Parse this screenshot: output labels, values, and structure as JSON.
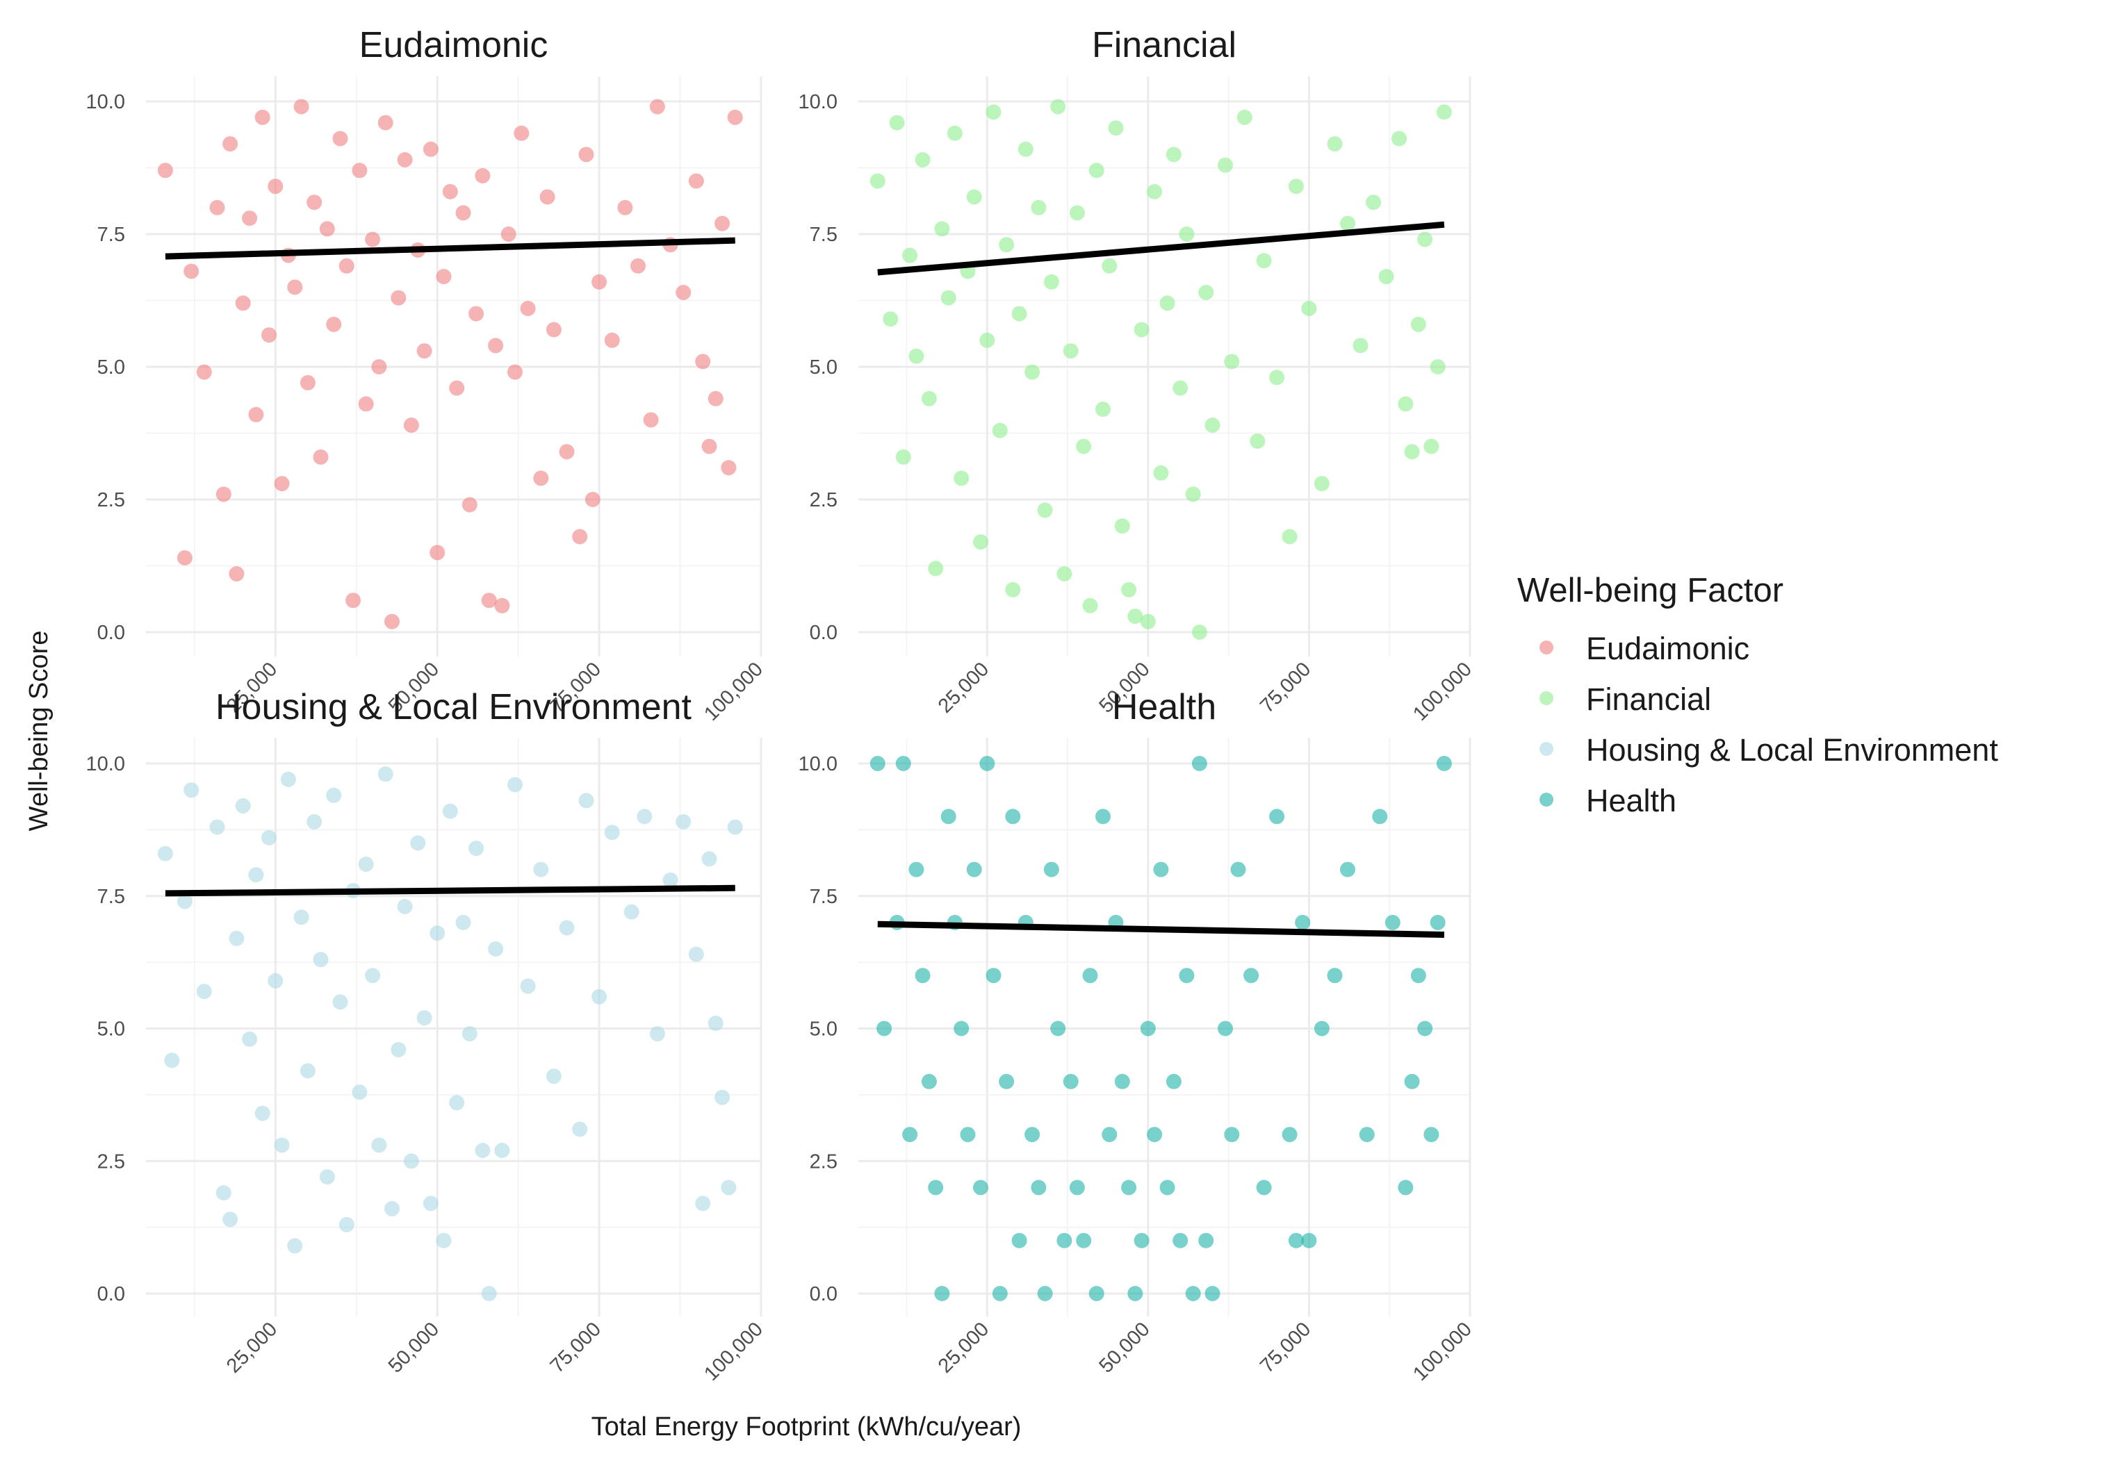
{
  "chart_data": {
    "type": "scatter",
    "xlabel": "Total Energy Footprint (kWh/cu/year)",
    "ylabel": "Well-being Score",
    "xlim": [
      5000,
      100000
    ],
    "ylim": [
      0,
      10
    ],
    "x_ticks": [
      25000,
      50000,
      75000,
      100000
    ],
    "x_tick_labels": [
      "25,000",
      "50,000",
      "75,000",
      "100,000"
    ],
    "y_ticks": [
      0,
      2.5,
      5,
      7.5,
      10
    ],
    "y_tick_labels": [
      "0.0",
      "2.5",
      "5.0",
      "7.5",
      "10.0"
    ],
    "grid": true,
    "legend": {
      "title": "Well-being Factor",
      "placement": "right",
      "entries": [
        "Eudaimonic",
        "Financial",
        "Housing & Local Environment",
        "Health"
      ]
    },
    "facets": [
      {
        "title": "Eudaimonic",
        "color": "#F08080",
        "trend": {
          "x0": 8000,
          "y0": 7.08,
          "x1": 96000,
          "y1": 7.38
        },
        "points": [
          [
            8000,
            8.7
          ],
          [
            11000,
            1.4
          ],
          [
            12000,
            6.8
          ],
          [
            14000,
            4.9
          ],
          [
            16000,
            8.0
          ],
          [
            17000,
            2.6
          ],
          [
            18000,
            9.2
          ],
          [
            19000,
            1.1
          ],
          [
            20000,
            6.2
          ],
          [
            21000,
            7.8
          ],
          [
            22000,
            4.1
          ],
          [
            23000,
            9.7
          ],
          [
            24000,
            5.6
          ],
          [
            25000,
            8.4
          ],
          [
            26000,
            2.8
          ],
          [
            27000,
            7.1
          ],
          [
            28000,
            6.5
          ],
          [
            29000,
            9.9
          ],
          [
            30000,
            4.7
          ],
          [
            31000,
            8.1
          ],
          [
            32000,
            3.3
          ],
          [
            33000,
            7.6
          ],
          [
            34000,
            5.8
          ],
          [
            35000,
            9.3
          ],
          [
            36000,
            6.9
          ],
          [
            37000,
            0.6
          ],
          [
            38000,
            8.7
          ],
          [
            39000,
            4.3
          ],
          [
            40000,
            7.4
          ],
          [
            41000,
            5.0
          ],
          [
            42000,
            9.6
          ],
          [
            43000,
            0.2
          ],
          [
            44000,
            6.3
          ],
          [
            45000,
            8.9
          ],
          [
            46000,
            3.9
          ],
          [
            47000,
            7.2
          ],
          [
            48000,
            5.3
          ],
          [
            49000,
            9.1
          ],
          [
            50000,
            1.5
          ],
          [
            51000,
            6.7
          ],
          [
            52000,
            8.3
          ],
          [
            53000,
            4.6
          ],
          [
            54000,
            7.9
          ],
          [
            55000,
            2.4
          ],
          [
            56000,
            6.0
          ],
          [
            57000,
            8.6
          ],
          [
            58000,
            0.6
          ],
          [
            59000,
            5.4
          ],
          [
            60000,
            0.5
          ],
          [
            61000,
            7.5
          ],
          [
            62000,
            4.9
          ],
          [
            63000,
            9.4
          ],
          [
            64000,
            6.1
          ],
          [
            66000,
            2.9
          ],
          [
            67000,
            8.2
          ],
          [
            68000,
            5.7
          ],
          [
            70000,
            3.4
          ],
          [
            72000,
            1.8
          ],
          [
            73000,
            9.0
          ],
          [
            74000,
            2.5
          ],
          [
            75000,
            6.6
          ],
          [
            77000,
            5.5
          ],
          [
            79000,
            8.0
          ],
          [
            81000,
            6.9
          ],
          [
            83000,
            4.0
          ],
          [
            84000,
            9.9
          ],
          [
            86000,
            7.3
          ],
          [
            88000,
            6.4
          ],
          [
            90000,
            8.5
          ],
          [
            91000,
            5.1
          ],
          [
            92000,
            3.5
          ],
          [
            93000,
            4.4
          ],
          [
            94000,
            7.7
          ],
          [
            95000,
            3.1
          ],
          [
            96000,
            9.7
          ]
        ]
      },
      {
        "title": "Financial",
        "color": "#90EE90",
        "trend": {
          "x0": 8000,
          "y0": 6.78,
          "x1": 96000,
          "y1": 7.68
        },
        "points": [
          [
            8000,
            8.5
          ],
          [
            10000,
            5.9
          ],
          [
            11000,
            9.6
          ],
          [
            12000,
            3.3
          ],
          [
            13000,
            7.1
          ],
          [
            14000,
            5.2
          ],
          [
            15000,
            8.9
          ],
          [
            16000,
            4.4
          ],
          [
            17000,
            1.2
          ],
          [
            18000,
            7.6
          ],
          [
            19000,
            6.3
          ],
          [
            20000,
            9.4
          ],
          [
            21000,
            2.9
          ],
          [
            22000,
            6.8
          ],
          [
            23000,
            8.2
          ],
          [
            24000,
            1.7
          ],
          [
            25000,
            5.5
          ],
          [
            26000,
            9.8
          ],
          [
            27000,
            3.8
          ],
          [
            28000,
            7.3
          ],
          [
            29000,
            0.8
          ],
          [
            30000,
            6.0
          ],
          [
            31000,
            9.1
          ],
          [
            32000,
            4.9
          ],
          [
            33000,
            8.0
          ],
          [
            34000,
            2.3
          ],
          [
            35000,
            6.6
          ],
          [
            36000,
            9.9
          ],
          [
            37000,
            1.1
          ],
          [
            38000,
            5.3
          ],
          [
            39000,
            7.9
          ],
          [
            40000,
            3.5
          ],
          [
            41000,
            0.5
          ],
          [
            42000,
            8.7
          ],
          [
            43000,
            4.2
          ],
          [
            44000,
            6.9
          ],
          [
            45000,
            9.5
          ],
          [
            46000,
            2.0
          ],
          [
            47000,
            0.8
          ],
          [
            48000,
            0.3
          ],
          [
            49000,
            5.7
          ],
          [
            50000,
            0.2
          ],
          [
            51000,
            8.3
          ],
          [
            52000,
            3.0
          ],
          [
            53000,
            6.2
          ],
          [
            54000,
            9.0
          ],
          [
            55000,
            4.6
          ],
          [
            56000,
            7.5
          ],
          [
            57000,
            2.6
          ],
          [
            58000,
            0.0
          ],
          [
            59000,
            6.4
          ],
          [
            60000,
            3.9
          ],
          [
            62000,
            8.8
          ],
          [
            63000,
            5.1
          ],
          [
            65000,
            9.7
          ],
          [
            67000,
            3.6
          ],
          [
            68000,
            7.0
          ],
          [
            70000,
            4.8
          ],
          [
            72000,
            1.8
          ],
          [
            73000,
            8.4
          ],
          [
            75000,
            6.1
          ],
          [
            77000,
            2.8
          ],
          [
            79000,
            9.2
          ],
          [
            81000,
            7.7
          ],
          [
            83000,
            5.4
          ],
          [
            85000,
            8.1
          ],
          [
            87000,
            6.7
          ],
          [
            89000,
            9.3
          ],
          [
            90000,
            4.3
          ],
          [
            91000,
            3.4
          ],
          [
            92000,
            5.8
          ],
          [
            93000,
            7.4
          ],
          [
            94000,
            3.5
          ],
          [
            95000,
            5.0
          ],
          [
            96000,
            9.8
          ]
        ]
      },
      {
        "title": "Housing & Local Environment",
        "color": "#ADD8E6",
        "trend": {
          "x0": 8000,
          "y0": 7.55,
          "x1": 96000,
          "y1": 7.65
        },
        "points": [
          [
            8000,
            8.3
          ],
          [
            9000,
            4.4
          ],
          [
            11000,
            7.4
          ],
          [
            12000,
            9.5
          ],
          [
            14000,
            5.7
          ],
          [
            16000,
            8.8
          ],
          [
            17000,
            1.9
          ],
          [
            18000,
            1.4
          ],
          [
            19000,
            6.7
          ],
          [
            20000,
            9.2
          ],
          [
            21000,
            4.8
          ],
          [
            22000,
            7.9
          ],
          [
            23000,
            3.4
          ],
          [
            24000,
            8.6
          ],
          [
            25000,
            5.9
          ],
          [
            26000,
            2.8
          ],
          [
            27000,
            9.7
          ],
          [
            28000,
            0.9
          ],
          [
            29000,
            7.1
          ],
          [
            30000,
            4.2
          ],
          [
            31000,
            8.9
          ],
          [
            32000,
            6.3
          ],
          [
            33000,
            2.2
          ],
          [
            34000,
            9.4
          ],
          [
            35000,
            5.5
          ],
          [
            36000,
            1.3
          ],
          [
            37000,
            7.6
          ],
          [
            38000,
            3.8
          ],
          [
            39000,
            8.1
          ],
          [
            40000,
            6.0
          ],
          [
            41000,
            2.8
          ],
          [
            42000,
            9.8
          ],
          [
            43000,
            1.6
          ],
          [
            44000,
            4.6
          ],
          [
            45000,
            7.3
          ],
          [
            46000,
            2.5
          ],
          [
            47000,
            8.5
          ],
          [
            48000,
            5.2
          ],
          [
            49000,
            1.7
          ],
          [
            50000,
            6.8
          ],
          [
            51000,
            1.0
          ],
          [
            52000,
            9.1
          ],
          [
            53000,
            3.6
          ],
          [
            54000,
            7.0
          ],
          [
            55000,
            4.9
          ],
          [
            56000,
            8.4
          ],
          [
            57000,
            2.7
          ],
          [
            58000,
            0.0
          ],
          [
            59000,
            6.5
          ],
          [
            60000,
            2.7
          ],
          [
            62000,
            9.6
          ],
          [
            64000,
            5.8
          ],
          [
            66000,
            8.0
          ],
          [
            68000,
            4.1
          ],
          [
            70000,
            6.9
          ],
          [
            72000,
            3.1
          ],
          [
            73000,
            9.3
          ],
          [
            75000,
            5.6
          ],
          [
            77000,
            8.7
          ],
          [
            80000,
            7.2
          ],
          [
            82000,
            9.0
          ],
          [
            84000,
            4.9
          ],
          [
            86000,
            7.8
          ],
          [
            88000,
            8.9
          ],
          [
            90000,
            6.4
          ],
          [
            91000,
            1.7
          ],
          [
            92000,
            8.2
          ],
          [
            93000,
            5.1
          ],
          [
            94000,
            3.7
          ],
          [
            95000,
            2.0
          ],
          [
            96000,
            8.8
          ]
        ]
      },
      {
        "title": "Health",
        "color": "#20B2AA",
        "trend": {
          "x0": 8000,
          "y0": 6.97,
          "x1": 96000,
          "y1": 6.77
        },
        "points": [
          [
            8000,
            10
          ],
          [
            9000,
            5
          ],
          [
            11000,
            7
          ],
          [
            12000,
            10
          ],
          [
            13000,
            3
          ],
          [
            14000,
            8
          ],
          [
            15000,
            6
          ],
          [
            16000,
            4
          ],
          [
            17000,
            2
          ],
          [
            18000,
            0
          ],
          [
            19000,
            9
          ],
          [
            20000,
            7
          ],
          [
            21000,
            5
          ],
          [
            22000,
            3
          ],
          [
            23000,
            8
          ],
          [
            24000,
            2
          ],
          [
            25000,
            10
          ],
          [
            26000,
            6
          ],
          [
            27000,
            0
          ],
          [
            28000,
            4
          ],
          [
            29000,
            9
          ],
          [
            30000,
            1
          ],
          [
            31000,
            7
          ],
          [
            32000,
            3
          ],
          [
            33000,
            2
          ],
          [
            34000,
            0
          ],
          [
            35000,
            8
          ],
          [
            36000,
            5
          ],
          [
            37000,
            1
          ],
          [
            38000,
            4
          ],
          [
            39000,
            2
          ],
          [
            40000,
            1
          ],
          [
            41000,
            6
          ],
          [
            42000,
            0
          ],
          [
            43000,
            9
          ],
          [
            44000,
            3
          ],
          [
            45000,
            7
          ],
          [
            46000,
            4
          ],
          [
            47000,
            2
          ],
          [
            48000,
            0
          ],
          [
            49000,
            1
          ],
          [
            50000,
            5
          ],
          [
            51000,
            3
          ],
          [
            52000,
            8
          ],
          [
            53000,
            2
          ],
          [
            54000,
            4
          ],
          [
            55000,
            1
          ],
          [
            56000,
            6
          ],
          [
            57000,
            0
          ],
          [
            58000,
            10
          ],
          [
            59000,
            1
          ],
          [
            60000,
            0
          ],
          [
            62000,
            5
          ],
          [
            63000,
            3
          ],
          [
            64000,
            8
          ],
          [
            66000,
            6
          ],
          [
            68000,
            2
          ],
          [
            70000,
            9
          ],
          [
            72000,
            3
          ],
          [
            73000,
            1
          ],
          [
            74000,
            7
          ],
          [
            75000,
            1
          ],
          [
            77000,
            5
          ],
          [
            79000,
            6
          ],
          [
            81000,
            8
          ],
          [
            84000,
            3
          ],
          [
            86000,
            9
          ],
          [
            88000,
            7
          ],
          [
            90000,
            2
          ],
          [
            91000,
            4
          ],
          [
            92000,
            6
          ],
          [
            93000,
            5
          ],
          [
            94000,
            3
          ],
          [
            95000,
            7
          ],
          [
            96000,
            10
          ]
        ]
      }
    ]
  }
}
